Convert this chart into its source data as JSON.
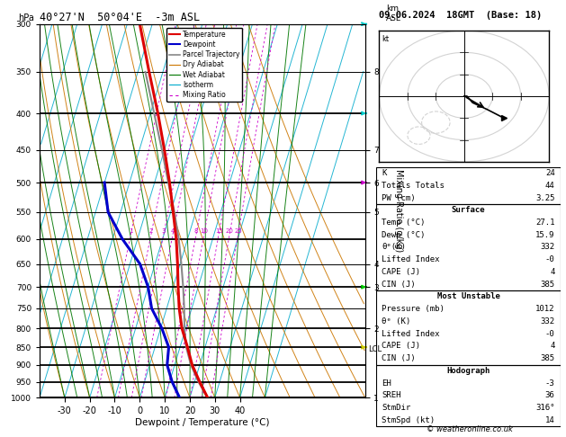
{
  "title_left": "40°27'N  50°04'E  -3m ASL",
  "title_right": "09.06.2024  18GMT  (Base: 18)",
  "xlabel": "Dewpoint / Temperature (°C)",
  "right_axis_label": "Mixing Ratio (g/kg)",
  "background_color": "#ffffff",
  "temp_color": "#dd0000",
  "dewp_color": "#0000cc",
  "parcel_color": "#888888",
  "dry_adiabat_color": "#cc7700",
  "wet_adiabat_color": "#007700",
  "isotherm_color": "#00aacc",
  "mixing_ratio_color": "#cc00cc",
  "copyright": "© weatheronline.co.uk",
  "temp_data": [
    [
      1000,
      27.1
    ],
    [
      950,
      22.0
    ],
    [
      900,
      17.0
    ],
    [
      850,
      13.0
    ],
    [
      800,
      8.5
    ],
    [
      750,
      5.0
    ],
    [
      700,
      2.0
    ],
    [
      650,
      -1.0
    ],
    [
      600,
      -4.5
    ],
    [
      550,
      -9.0
    ],
    [
      500,
      -14.0
    ],
    [
      450,
      -20.0
    ],
    [
      400,
      -27.0
    ],
    [
      350,
      -35.5
    ],
    [
      300,
      -45.0
    ]
  ],
  "dewp_data": [
    [
      1000,
      15.9
    ],
    [
      950,
      11.0
    ],
    [
      900,
      7.0
    ],
    [
      850,
      5.5
    ],
    [
      800,
      0.5
    ],
    [
      750,
      -6.0
    ],
    [
      700,
      -10.0
    ],
    [
      650,
      -16.0
    ],
    [
      600,
      -26.0
    ],
    [
      550,
      -35.0
    ],
    [
      500,
      -40.0
    ]
  ],
  "parcel_data": [
    [
      1000,
      27.1
    ],
    [
      950,
      21.5
    ],
    [
      900,
      16.5
    ],
    [
      850,
      12.5
    ],
    [
      800,
      9.5
    ],
    [
      750,
      7.0
    ],
    [
      700,
      4.0
    ],
    [
      650,
      0.5
    ],
    [
      600,
      -3.5
    ],
    [
      550,
      -8.5
    ],
    [
      500,
      -14.5
    ],
    [
      450,
      -21.0
    ],
    [
      400,
      -28.5
    ],
    [
      350,
      -37.0
    ]
  ],
  "mixing_ratios": [
    1,
    2,
    3,
    4,
    8,
    10,
    15,
    20,
    25
  ],
  "km_ticks": {
    "8": 350,
    "7": 450,
    "6": 500,
    "5": 550,
    "4": 650,
    "3": 700,
    "2": 800,
    "1": 1000
  },
  "lcl_pressure": 855,
  "wind_barbs": [
    {
      "p": 300,
      "color": "#00cccc"
    },
    {
      "p": 400,
      "color": "#00cccc"
    },
    {
      "p": 500,
      "color": "#cc00cc"
    },
    {
      "p": 700,
      "color": "#00cc00"
    },
    {
      "p": 850,
      "color": "#cccc00"
    }
  ],
  "stats_K": "24",
  "stats_TT": "44",
  "stats_PW": "3.25",
  "surf_temp": "27.1",
  "surf_dewp": "15.9",
  "surf_theta": "332",
  "surf_li": "-0",
  "surf_cape": "4",
  "surf_cin": "385",
  "mu_press": "1012",
  "mu_theta": "332",
  "mu_li": "-0",
  "mu_cape": "4",
  "mu_cin": "385",
  "hodo_EH": "-3",
  "hodo_SREH": "36",
  "hodo_StmDir": "316°",
  "hodo_StmSpd": "14"
}
